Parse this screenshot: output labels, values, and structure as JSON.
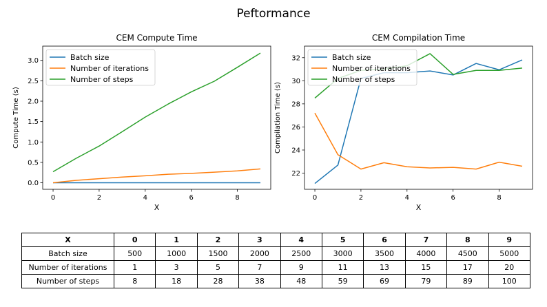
{
  "figure": {
    "title": "Peftormance"
  },
  "chart_data": [
    {
      "type": "line",
      "title": "CEM Compute Time",
      "xlabel": "X",
      "ylabel": "Compute Time (s)",
      "xlim": [
        -0.45,
        9.45
      ],
      "ylim": [
        -0.16,
        3.35
      ],
      "xticks": [
        0,
        2,
        4,
        6,
        8
      ],
      "yticks": [
        0.0,
        0.5,
        1.0,
        1.5,
        2.0,
        2.5,
        3.0
      ],
      "ytick_labels": [
        "0.0",
        "0.5",
        "1.0",
        "1.5",
        "2.0",
        "2.5",
        "3.0"
      ],
      "legend": "top-left",
      "x": [
        0,
        1,
        2,
        3,
        4,
        5,
        6,
        7,
        8,
        9
      ],
      "series": [
        {
          "name": "Batch size",
          "color": "#1f77b4",
          "values": [
            0.0,
            0.0,
            0.0,
            0.0,
            0.0,
            0.0,
            0.0,
            0.0,
            0.0,
            0.0
          ]
        },
        {
          "name": "Number of iterations",
          "color": "#ff7f0e",
          "values": [
            0.0,
            0.06,
            0.1,
            0.14,
            0.17,
            0.21,
            0.23,
            0.26,
            0.29,
            0.34
          ]
        },
        {
          "name": "Number of steps",
          "color": "#2ca02c",
          "values": [
            0.27,
            0.6,
            0.9,
            1.25,
            1.61,
            1.93,
            2.23,
            2.49,
            2.83,
            3.18
          ]
        }
      ]
    },
    {
      "type": "line",
      "title": "CEM Compilation Time",
      "xlabel": "X",
      "ylabel": "Compilation Time (s)",
      "xlim": [
        -0.45,
        9.45
      ],
      "ylim": [
        20.6,
        33.0
      ],
      "xticks": [
        0,
        2,
        4,
        6,
        8
      ],
      "yticks": [
        22,
        24,
        26,
        28,
        30,
        32
      ],
      "ytick_labels": [
        "22",
        "24",
        "26",
        "28",
        "30",
        "32"
      ],
      "legend": "top-left",
      "x": [
        0,
        1,
        2,
        3,
        4,
        5,
        6,
        7,
        8,
        9
      ],
      "series": [
        {
          "name": "Batch size",
          "color": "#1f77b4",
          "values": [
            21.1,
            22.7,
            30.2,
            30.7,
            30.7,
            30.85,
            30.5,
            31.5,
            30.95,
            31.8
          ]
        },
        {
          "name": "Number of iterations",
          "color": "#ff7f0e",
          "values": [
            27.2,
            23.6,
            22.35,
            22.9,
            22.55,
            22.45,
            22.5,
            22.35,
            22.95,
            22.6
          ]
        },
        {
          "name": "Number of steps",
          "color": "#2ca02c",
          "values": [
            28.5,
            30.2,
            30.9,
            31.0,
            31.3,
            32.35,
            30.55,
            30.9,
            30.9,
            31.1
          ]
        }
      ]
    }
  ],
  "table": {
    "header": [
      "X",
      "0",
      "1",
      "2",
      "3",
      "4",
      "5",
      "6",
      "7",
      "8",
      "9"
    ],
    "rows": [
      [
        "Batch size",
        "500",
        "1000",
        "1500",
        "2000",
        "2500",
        "3000",
        "3500",
        "4000",
        "4500",
        "5000"
      ],
      [
        "Number of iterations",
        "1",
        "3",
        "5",
        "7",
        "9",
        "11",
        "13",
        "15",
        "17",
        "20"
      ],
      [
        "Number of steps",
        "8",
        "18",
        "28",
        "38",
        "48",
        "59",
        "69",
        "79",
        "89",
        "100"
      ]
    ]
  }
}
